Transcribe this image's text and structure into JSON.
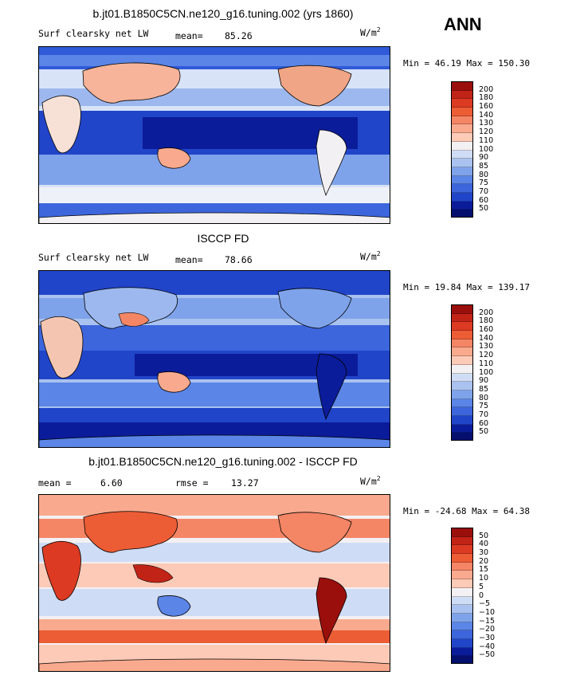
{
  "season": "ANN",
  "chart_data": [
    {
      "type": "heatmap",
      "title": "b.jt01.B1850C5CN.ne120_g16.tuning.002 (yrs 1860)",
      "left_label": "Surf clearsky net LW",
      "stat_label": "mean=",
      "stat_value": "85.26",
      "units_base": "W/m",
      "units_exp": "2",
      "min_label": "Min =",
      "min_value": "46.19",
      "max_label": "Max =",
      "max_value": "150.30",
      "levels": [
        "200",
        "180",
        "160",
        "140",
        "130",
        "120",
        "110",
        "100",
        "90",
        "85",
        "80",
        "75",
        "70",
        "60",
        "50"
      ],
      "colors": [
        "#9a0f0c",
        "#c22317",
        "#dc3a22",
        "#ec5c35",
        "#f48565",
        "#f9aa8e",
        "#fccab7",
        "#f3f0f3",
        "#cfdcf5",
        "#a9c2ef",
        "#7fa3ea",
        "#5b85e6",
        "#3d66dc",
        "#2145c9",
        "#0b1c9a",
        "#05106e"
      ]
    },
    {
      "type": "heatmap",
      "title": "ISCCP FD",
      "left_label": "Surf clearsky net LW",
      "stat_label": "mean=",
      "stat_value": "78.66",
      "units_base": "W/m",
      "units_exp": "2",
      "min_label": "Min =",
      "min_value": "19.84",
      "max_label": "Max =",
      "max_value": "139.17",
      "levels": [
        "200",
        "180",
        "160",
        "140",
        "130",
        "120",
        "110",
        "100",
        "90",
        "85",
        "80",
        "75",
        "70",
        "60",
        "50"
      ],
      "colors": [
        "#9a0f0c",
        "#c22317",
        "#dc3a22",
        "#ec5c35",
        "#f48565",
        "#f9aa8e",
        "#fccab7",
        "#f3f0f3",
        "#cfdcf5",
        "#a9c2ef",
        "#7fa3ea",
        "#5b85e6",
        "#3d66dc",
        "#2145c9",
        "#0b1c9a",
        "#05106e"
      ]
    },
    {
      "type": "heatmap",
      "title": "b.jt01.B1850C5CN.ne120_g16.tuning.002 - ISCCP FD",
      "mean_label": "mean =",
      "mean_value": "6.60",
      "rmse_label": "rmse =",
      "rmse_value": "13.27",
      "units_base": "W/m",
      "units_exp": "2",
      "min_label": "Min =",
      "min_value": "-24.68",
      "max_label": "Max =",
      "max_value": "64.38",
      "levels": [
        "50",
        "40",
        "30",
        "20",
        "15",
        "10",
        "5",
        "0",
        "−5",
        "−10",
        "−15",
        "−20",
        "−30",
        "−40",
        "−50"
      ],
      "colors": [
        "#9a0f0c",
        "#c22317",
        "#dc3a22",
        "#ec5c35",
        "#f48565",
        "#f9aa8e",
        "#fccab7",
        "#f3f0f3",
        "#cfdcf5",
        "#a9c2ef",
        "#7fa3ea",
        "#5b85e6",
        "#3d66dc",
        "#2145c9",
        "#0b1c9a",
        "#05106e"
      ]
    }
  ]
}
